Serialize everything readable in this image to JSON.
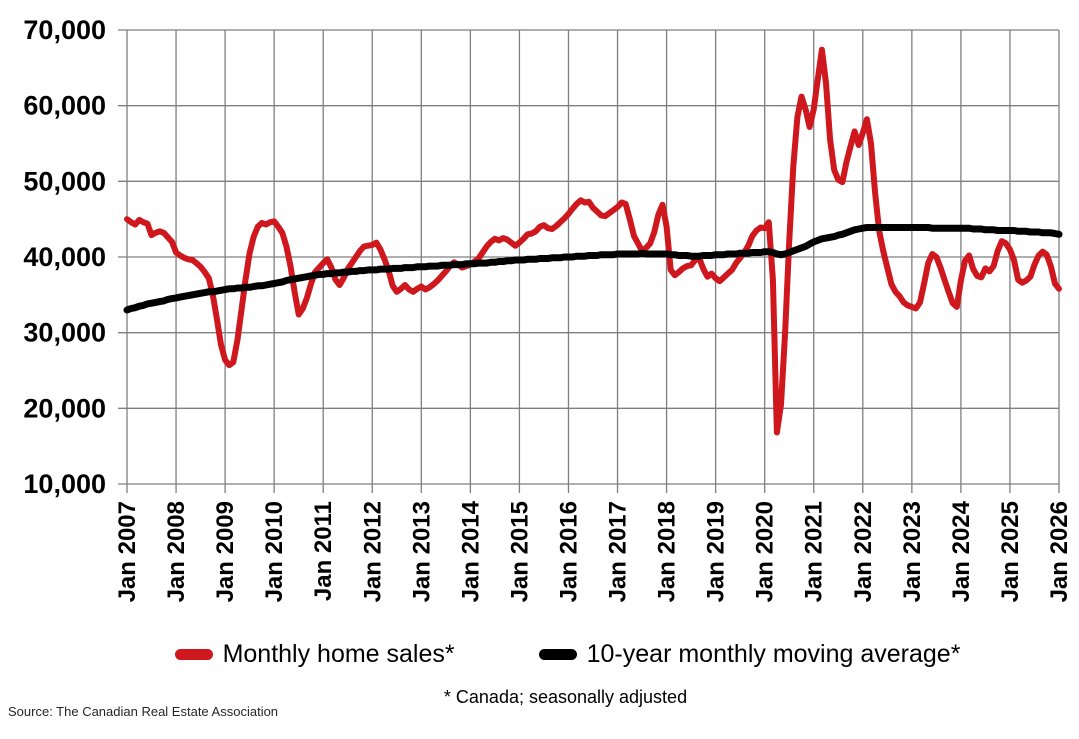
{
  "chart_data": {
    "type": "line",
    "title": "",
    "xlabel": "",
    "ylabel": "",
    "grid": true,
    "legend_position": "bottom",
    "values_unit": "home sales per month (count), values stored in thousands",
    "x_range": [
      "Jan 2007",
      "Jan 2026"
    ],
    "x_tick_interval_months": 12,
    "x_tick_labels": [
      "Jan 2007",
      "Jan 2008",
      "Jan 2009",
      "Jan 2010",
      "Jan 2011",
      "Jan 2012",
      "Jan 2013",
      "Jan 2014",
      "Jan 2015",
      "Jan 2016",
      "Jan 2017",
      "Jan 2018",
      "Jan 2019",
      "Jan 2020",
      "Jan 2021",
      "Jan 2022",
      "Jan 2023",
      "Jan 2024",
      "Jan 2025",
      "Jan 2026"
    ],
    "ylim_thousands": [
      10,
      70
    ],
    "y_ticks_thousands": [
      10,
      20,
      30,
      40,
      50,
      60,
      70
    ],
    "y_tick_labels": [
      "10,000",
      "20,000",
      "30,000",
      "40,000",
      "50,000",
      "60,000",
      "70,000"
    ],
    "grid_color": "#7F7F7F",
    "series": [
      {
        "name": "Monthly home sales*",
        "color": "#CF171E",
        "stroke_width": 6,
        "values_thousands": [
          45.0,
          44.6,
          44.3,
          44.9,
          44.6,
          44.4,
          42.9,
          43.2,
          43.4,
          43.2,
          42.6,
          42.0,
          40.6,
          40.2,
          39.9,
          39.7,
          39.6,
          39.2,
          38.7,
          38.0,
          37.2,
          35.0,
          31.8,
          28.4,
          26.4,
          25.7,
          26.1,
          29.0,
          33.0,
          37.0,
          40.5,
          42.7,
          44.0,
          44.5,
          44.3,
          44.6,
          44.7,
          44.0,
          43.2,
          41.4,
          38.8,
          35.4,
          32.4,
          33.2,
          34.6,
          36.4,
          38.0,
          38.6,
          39.2,
          39.7,
          38.6,
          37.0,
          36.3,
          37.2,
          38.4,
          39.2,
          40.0,
          40.8,
          41.4,
          41.5,
          41.6,
          41.9,
          41.0,
          39.7,
          38.2,
          36.2,
          35.4,
          35.8,
          36.3,
          35.7,
          35.4,
          35.8,
          36.1,
          35.7,
          36.0,
          36.4,
          36.9,
          37.5,
          38.1,
          38.8,
          39.3,
          39.0,
          38.6,
          38.8,
          39.0,
          39.4,
          39.8,
          40.6,
          41.4,
          42.0,
          42.4,
          42.2,
          42.5,
          42.3,
          41.9,
          41.5,
          41.9,
          42.4,
          43.0,
          43.1,
          43.4,
          44.0,
          44.2,
          43.8,
          43.7,
          44.1,
          44.6,
          45.1,
          45.7,
          46.4,
          47.0,
          47.5,
          47.2,
          47.3,
          46.5,
          46.0,
          45.5,
          45.4,
          45.8,
          46.2,
          46.6,
          47.2,
          47.0,
          45.0,
          42.8,
          41.8,
          40.8,
          41.2,
          41.8,
          43.3,
          45.6,
          46.9,
          44.0,
          38.3,
          37.6,
          38.0,
          38.5,
          38.8,
          38.9,
          39.6,
          39.8,
          38.4,
          37.4,
          37.8,
          37.2,
          36.8,
          37.3,
          37.8,
          38.3,
          39.2,
          39.9,
          40.6,
          41.5,
          42.8,
          43.5,
          43.9,
          43.8,
          44.6,
          37.0,
          16.8,
          20.5,
          30.0,
          42.0,
          52.0,
          58.5,
          61.2,
          59.5,
          57.2,
          59.5,
          63.5,
          67.4,
          63.0,
          55.5,
          51.5,
          50.2,
          49.9,
          52.5,
          54.6,
          56.6,
          54.8,
          56.4,
          58.2,
          55.0,
          48.5,
          43.5,
          40.8,
          38.6,
          36.4,
          35.4,
          34.8,
          34.0,
          33.6,
          33.4,
          33.2,
          34.0,
          36.5,
          39.2,
          40.4,
          40.0,
          38.6,
          37.0,
          35.4,
          33.9,
          33.4,
          36.9,
          39.5,
          40.2,
          38.4,
          37.5,
          37.3,
          38.5,
          38.1,
          38.8,
          40.8,
          42.1,
          41.8,
          41.0,
          39.6,
          37.0,
          36.6,
          36.9,
          37.4,
          39.0,
          40.2,
          40.7,
          40.3,
          38.8,
          36.5,
          35.8
        ]
      },
      {
        "name": "10-year monthly moving average*",
        "color": "#000000",
        "stroke_width": 7,
        "values_thousands": [
          33.0,
          33.2,
          33.3,
          33.5,
          33.6,
          33.8,
          33.9,
          34.0,
          34.1,
          34.2,
          34.4,
          34.5,
          34.6,
          34.7,
          34.8,
          34.9,
          35.0,
          35.1,
          35.2,
          35.3,
          35.4,
          35.4,
          35.5,
          35.6,
          35.7,
          35.8,
          35.8,
          35.9,
          35.9,
          36.0,
          36.0,
          36.1,
          36.2,
          36.2,
          36.3,
          36.4,
          36.5,
          36.6,
          36.7,
          36.9,
          37.0,
          37.1,
          37.2,
          37.3,
          37.4,
          37.5,
          37.6,
          37.7,
          37.7,
          37.8,
          37.8,
          37.9,
          37.9,
          38.0,
          38.0,
          38.1,
          38.1,
          38.2,
          38.2,
          38.3,
          38.3,
          38.3,
          38.4,
          38.4,
          38.4,
          38.5,
          38.5,
          38.5,
          38.6,
          38.6,
          38.6,
          38.7,
          38.7,
          38.7,
          38.8,
          38.8,
          38.8,
          38.9,
          38.9,
          38.9,
          39.0,
          39.0,
          39.0,
          39.1,
          39.1,
          39.1,
          39.2,
          39.2,
          39.2,
          39.3,
          39.3,
          39.4,
          39.4,
          39.5,
          39.5,
          39.6,
          39.6,
          39.6,
          39.7,
          39.7,
          39.7,
          39.8,
          39.8,
          39.8,
          39.9,
          39.9,
          39.9,
          40.0,
          40.0,
          40.0,
          40.1,
          40.1,
          40.1,
          40.2,
          40.2,
          40.2,
          40.3,
          40.3,
          40.3,
          40.3,
          40.4,
          40.4,
          40.4,
          40.4,
          40.4,
          40.4,
          40.5,
          40.4,
          40.4,
          40.4,
          40.4,
          40.4,
          40.4,
          40.3,
          40.3,
          40.2,
          40.2,
          40.2,
          40.1,
          40.1,
          40.1,
          40.2,
          40.2,
          40.2,
          40.3,
          40.3,
          40.3,
          40.4,
          40.4,
          40.4,
          40.5,
          40.5,
          40.5,
          40.6,
          40.6,
          40.6,
          40.7,
          40.7,
          40.6,
          40.4,
          40.3,
          40.4,
          40.6,
          40.8,
          41.0,
          41.2,
          41.4,
          41.7,
          42.0,
          42.2,
          42.4,
          42.5,
          42.6,
          42.7,
          42.9,
          43.0,
          43.2,
          43.4,
          43.6,
          43.7,
          43.8,
          43.9,
          43.9,
          43.9,
          43.9,
          43.9,
          43.9,
          43.9,
          43.9,
          43.9,
          43.9,
          43.9,
          43.9,
          43.9,
          43.9,
          43.9,
          43.9,
          43.8,
          43.8,
          43.8,
          43.8,
          43.8,
          43.8,
          43.8,
          43.8,
          43.8,
          43.8,
          43.7,
          43.7,
          43.7,
          43.6,
          43.6,
          43.6,
          43.5,
          43.5,
          43.5,
          43.5,
          43.5,
          43.4,
          43.4,
          43.4,
          43.3,
          43.3,
          43.3,
          43.2,
          43.2,
          43.2,
          43.1,
          43.0
        ]
      }
    ]
  },
  "legend": {
    "items": [
      {
        "label": "Monthly home sales*",
        "color": "#CF171E"
      },
      {
        "label": "10-year monthly moving average*",
        "color": "#000000"
      }
    ]
  },
  "footnote": "* Canada; seasonally adjusted",
  "source": "Source: The Canadian Real Estate Association"
}
